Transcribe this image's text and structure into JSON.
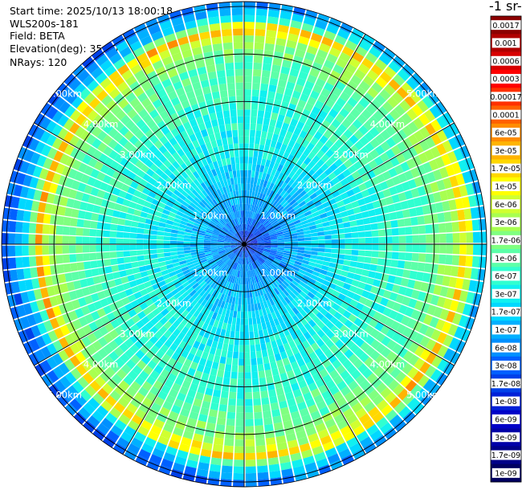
{
  "info": {
    "start_time": "Start time: 2025/10/13 18:00:18",
    "instrument": "WLS200s-181",
    "field": "Field: BETA",
    "elevation": "Elevation(deg): 35.00",
    "nrays": "NRays: 120"
  },
  "chart_data": {
    "type": "polar-ppi",
    "colorbar_title": "-1 sr-",
    "range_unit": "km",
    "rings": [
      1,
      2,
      3,
      4,
      5
    ],
    "ring_labels": [
      "1.00km",
      "2.00km",
      "3.00km",
      "4.00km",
      "5.00km"
    ],
    "max_range_km": 5.1,
    "colorbar_levels": [
      "0.0017",
      "0.001",
      "0.0006",
      "0.0003",
      "0.00017",
      "0.0001",
      "6e-05",
      "3e-05",
      "1.7e-05",
      "1e-05",
      "6e-06",
      "3e-06",
      "1.7e-06",
      "1e-06",
      "6e-07",
      "3e-07",
      "1.7e-07",
      "1e-07",
      "6e-08",
      "3e-08",
      "1.7e-08",
      "1e-08",
      "6e-09",
      "3e-09",
      "1.7e-09",
      "1e-09"
    ],
    "colorbar_colors": [
      "#8b0000",
      "#b00000",
      "#d80000",
      "#ff0000",
      "#ff3000",
      "#ff6000",
      "#ff8c00",
      "#ffb400",
      "#ffd800",
      "#ffff00",
      "#d0ff30",
      "#a8ff50",
      "#80ff80",
      "#5cffa8",
      "#30ffd0",
      "#10f0f0",
      "#00d8ff",
      "#00b0ff",
      "#0090ff",
      "#0060ff",
      "#0040e8",
      "#0020d8",
      "#0000c8",
      "#0000a8",
      "#000088",
      "#000060"
    ],
    "radial_profile": [
      {
        "range_km": 0.0,
        "level": "1e-08"
      },
      {
        "range_km": 0.5,
        "level": "6e-08"
      },
      {
        "range_km": 1.0,
        "level": "1e-07"
      },
      {
        "range_km": 2.0,
        "level": "3e-07"
      },
      {
        "range_km": 3.0,
        "level": "6e-07"
      },
      {
        "range_km": 3.8,
        "level": "1e-06"
      },
      {
        "range_km": 4.3,
        "level": "3e-06"
      },
      {
        "range_km": 4.5,
        "level": "3e-05"
      },
      {
        "range_km": 4.7,
        "level": "3e-07"
      },
      {
        "range_km": 5.1,
        "level": "3e-08"
      }
    ]
  }
}
